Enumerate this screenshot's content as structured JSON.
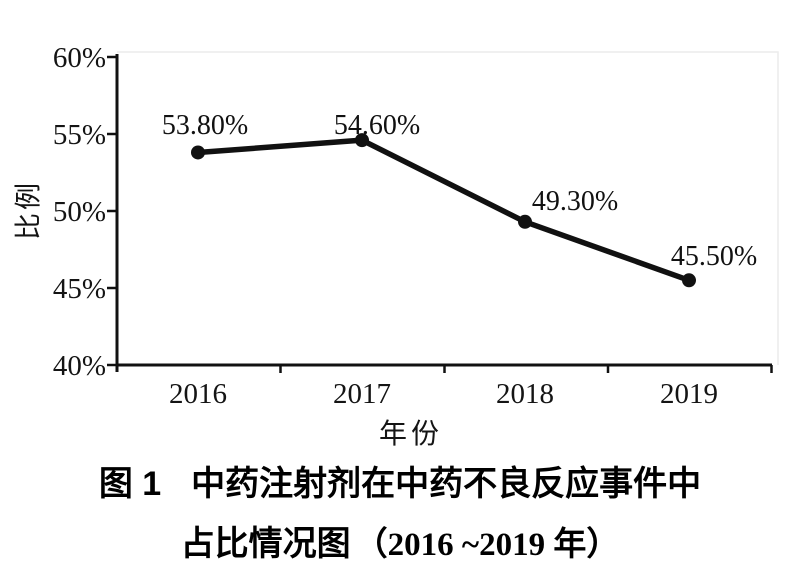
{
  "figure_caption": {
    "label": "图 1",
    "title_line1": "中药注射剂在中药不良反应事件中",
    "title_line2_head": "占比情况图",
    "title_line2_range": "（2016 ~2019 年）"
  },
  "chart_data": {
    "type": "line",
    "title": "",
    "xlabel": "年份",
    "ylabel": "比例",
    "categories": [
      "2016",
      "2017",
      "2018",
      "2019"
    ],
    "values": [
      53.8,
      54.6,
      49.3,
      45.5
    ],
    "data_labels": [
      "53.80%",
      "54.60%",
      "49.30%",
      "45.50%"
    ],
    "y_ticks": [
      {
        "label": "60%",
        "value": 60
      },
      {
        "label": "55%",
        "value": 55
      },
      {
        "label": "50%",
        "value": 50
      },
      {
        "label": "45%",
        "value": 45
      },
      {
        "label": "40%",
        "value": 40
      }
    ],
    "ylim": [
      40,
      60
    ],
    "grid": false,
    "legend": "none",
    "line_color": "#111111",
    "marker": "circle",
    "plot_border_color": "#ececec"
  }
}
